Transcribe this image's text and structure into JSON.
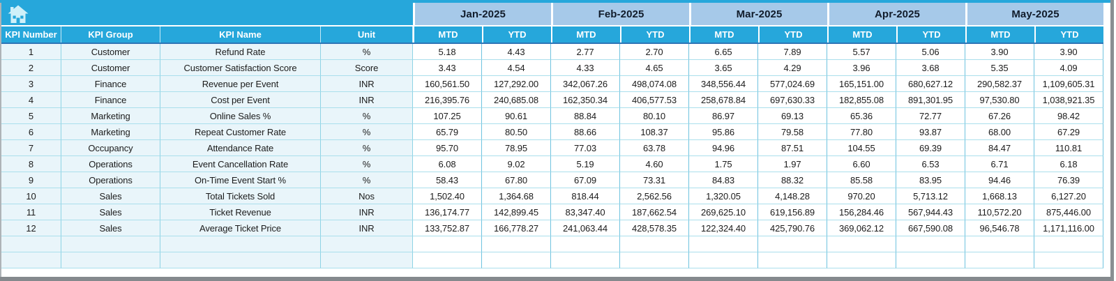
{
  "colors": {
    "header_cyan": "#26A7DB",
    "month_band_blue": "#A6C9E9",
    "row_light_blue": "#E9F5FA",
    "grid_teal": "#8ED3E5",
    "header_underline_blue": "#2E75B6",
    "frame_gray": "#8a8f93"
  },
  "home_button": {
    "icon": "home-icon"
  },
  "table": {
    "column_headers": [
      "KPI Number",
      "KPI Group",
      "KPI Name",
      "Unit"
    ],
    "months": [
      "Jan-2025",
      "Feb-2025",
      "Mar-2025",
      "Apr-2025",
      "May-2025"
    ],
    "sub_columns": [
      "MTD",
      "YTD"
    ],
    "empty_rows": 2,
    "rows": [
      {
        "number": "1",
        "group": "Customer",
        "name": "Refund Rate",
        "unit": "%",
        "values": [
          "5.18",
          "4.43",
          "2.77",
          "2.70",
          "6.65",
          "7.89",
          "5.57",
          "5.06",
          "3.90",
          "3.90"
        ]
      },
      {
        "number": "2",
        "group": "Customer",
        "name": "Customer Satisfaction Score",
        "unit": "Score",
        "values": [
          "3.43",
          "4.54",
          "4.33",
          "4.65",
          "3.65",
          "4.29",
          "3.96",
          "3.68",
          "5.35",
          "4.09"
        ]
      },
      {
        "number": "3",
        "group": "Finance",
        "name": "Revenue per Event",
        "unit": "INR",
        "values": [
          "160,561.50",
          "127,292.00",
          "342,067.26",
          "498,074.08",
          "348,556.44",
          "577,024.69",
          "165,151.00",
          "680,627.12",
          "290,582.37",
          "1,109,605.31"
        ]
      },
      {
        "number": "4",
        "group": "Finance",
        "name": "Cost per Event",
        "unit": "INR",
        "values": [
          "216,395.76",
          "240,685.08",
          "162,350.34",
          "406,577.53",
          "258,678.84",
          "697,630.33",
          "182,855.08",
          "891,301.95",
          "97,530.80",
          "1,038,921.35"
        ]
      },
      {
        "number": "5",
        "group": "Marketing",
        "name": "Online Sales %",
        "unit": "%",
        "values": [
          "107.25",
          "90.61",
          "88.84",
          "80.10",
          "86.97",
          "69.13",
          "65.36",
          "72.77",
          "67.26",
          "98.42"
        ]
      },
      {
        "number": "6",
        "group": "Marketing",
        "name": "Repeat Customer Rate",
        "unit": "%",
        "values": [
          "65.79",
          "80.50",
          "88.66",
          "108.37",
          "95.86",
          "79.58",
          "77.80",
          "93.87",
          "68.00",
          "67.29"
        ]
      },
      {
        "number": "7",
        "group": "Occupancy",
        "name": "Attendance Rate",
        "unit": "%",
        "values": [
          "95.70",
          "78.95",
          "77.03",
          "63.78",
          "94.96",
          "87.51",
          "104.55",
          "69.39",
          "84.47",
          "110.81"
        ]
      },
      {
        "number": "8",
        "group": "Operations",
        "name": "Event Cancellation Rate",
        "unit": "%",
        "values": [
          "6.08",
          "9.02",
          "5.19",
          "4.60",
          "1.75",
          "1.97",
          "6.60",
          "6.53",
          "6.71",
          "6.18"
        ]
      },
      {
        "number": "9",
        "group": "Operations",
        "name": "On-Time Event Start %",
        "unit": "%",
        "values": [
          "58.43",
          "67.80",
          "67.09",
          "73.31",
          "84.83",
          "88.32",
          "85.58",
          "83.95",
          "94.46",
          "76.39"
        ]
      },
      {
        "number": "10",
        "group": "Sales",
        "name": "Total Tickets Sold",
        "unit": "Nos",
        "values": [
          "1,502.40",
          "1,364.68",
          "818.44",
          "2,562.56",
          "1,320.05",
          "4,148.28",
          "970.20",
          "5,713.12",
          "1,668.13",
          "6,127.20"
        ]
      },
      {
        "number": "11",
        "group": "Sales",
        "name": "Ticket Revenue",
        "unit": "INR",
        "values": [
          "136,174.77",
          "142,899.45",
          "83,347.40",
          "187,662.54",
          "269,625.10",
          "619,156.89",
          "156,284.46",
          "567,944.43",
          "110,572.20",
          "875,446.00"
        ]
      },
      {
        "number": "12",
        "group": "Sales",
        "name": "Average Ticket Price",
        "unit": "INR",
        "values": [
          "133,752.87",
          "166,778.27",
          "241,063.44",
          "428,578.35",
          "122,324.40",
          "425,790.76",
          "369,062.12",
          "667,590.08",
          "96,546.78",
          "1,171,116.00"
        ]
      }
    ]
  }
}
